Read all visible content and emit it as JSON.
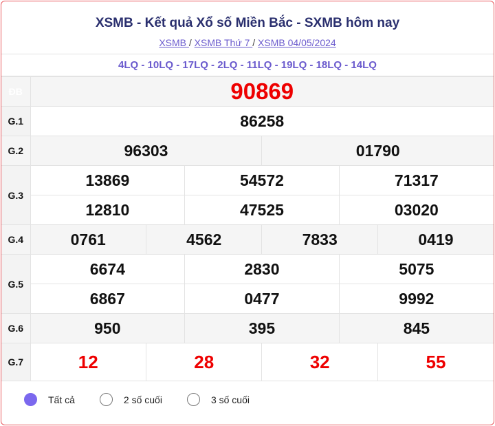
{
  "header": {
    "title": "XSMB - Kết quả Xổ số Miền Bắc - SXMB hôm nay",
    "breadcrumbs": [
      "XSMB ",
      "XSMB Thứ 7 ",
      "XSMB 04/05/2024"
    ]
  },
  "lq": "4LQ - 10LQ - 17LQ - 2LQ - 11LQ - 19LQ - 18LQ - 14LQ",
  "prizes": {
    "db": {
      "label": "ĐB",
      "values": [
        "90869"
      ]
    },
    "g1": {
      "label": "G.1",
      "values": [
        "86258"
      ]
    },
    "g2": {
      "label": "G.2",
      "values": [
        "96303",
        "01790"
      ]
    },
    "g3": {
      "label": "G.3",
      "values": [
        "13869",
        "54572",
        "71317",
        "12810",
        "47525",
        "03020"
      ]
    },
    "g4": {
      "label": "G.4",
      "values": [
        "0761",
        "4562",
        "7833",
        "0419"
      ]
    },
    "g5": {
      "label": "G.5",
      "values": [
        "6674",
        "2830",
        "5075",
        "6867",
        "0477",
        "9992"
      ]
    },
    "g6": {
      "label": "G.6",
      "values": [
        "950",
        "395",
        "845"
      ]
    },
    "g7": {
      "label": "G.7",
      "values": [
        "12",
        "28",
        "32",
        "55"
      ]
    }
  },
  "filter": {
    "options": [
      "Tất cả",
      "2 số cuối",
      "3 số cuối"
    ],
    "selected": "Tất cả"
  },
  "colors": {
    "accent": "#e9575d",
    "special": "#ee0000",
    "link": "#6a5acd"
  }
}
